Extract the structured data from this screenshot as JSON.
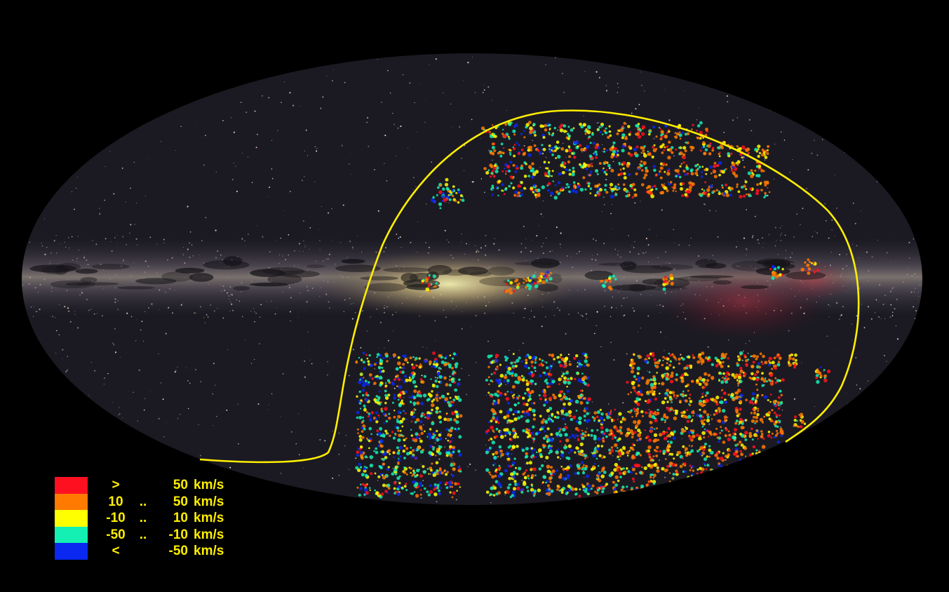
{
  "map": {
    "projection": "aitoff",
    "background_color": "#000000",
    "boundary_color": "#ffee00",
    "milky_way_band": true
  },
  "legend": {
    "label_color": "#ffee00",
    "items": [
      {
        "color": "#ff1020",
        "sym": ">",
        "mid": "",
        "val": "50",
        "unit": "km/s"
      },
      {
        "color": "#ff7a00",
        "sym": "10",
        "mid": "..",
        "val": "50",
        "unit": "km/s"
      },
      {
        "color": "#ffff00",
        "sym": "-10",
        "mid": "..",
        "val": "10",
        "unit": "km/s"
      },
      {
        "color": "#14f0b4",
        "sym": "-50",
        "mid": "..",
        "val": "-10",
        "unit": "km/s"
      },
      {
        "color": "#0a28f0",
        "sym": "<",
        "mid": "",
        "val": "-50",
        "unit": "km/s"
      }
    ]
  }
}
